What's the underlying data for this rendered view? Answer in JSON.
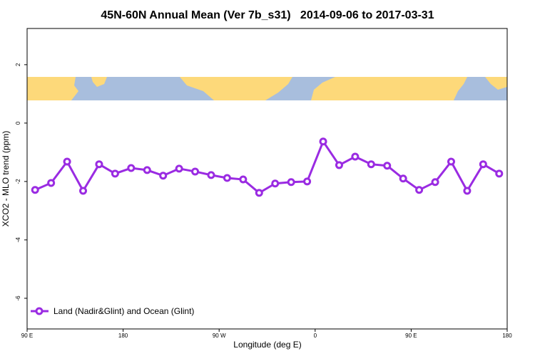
{
  "chart_data": {
    "type": "line",
    "title": "45N-60N Annual Mean (Ver 7b_s31)   2014-09-06 to 2017-03-31",
    "x_label": "Longitude (deg E)",
    "y_label": "XCO2 - MLO trend (ppm)",
    "x": [
      97.5,
      112.5,
      127.5,
      142.5,
      157.5,
      172.5,
      187.5,
      202.5,
      217.5,
      232.5,
      247.5,
      262.5,
      277.5,
      292.5,
      307.5,
      322.5,
      337.5,
      352.5,
      367.5,
      382.5,
      397.5,
      412.5,
      427.5,
      442.5,
      457.5,
      472.5,
      487.5,
      502.5,
      517.5,
      532.5
    ],
    "series": [
      {
        "name": "Land (Nadir&Glint) and Ocean (Glint)",
        "color": "#9a2be2",
        "values": [
          -2.29,
          -2.05,
          -1.32,
          -2.32,
          -1.41,
          -1.73,
          -1.54,
          -1.61,
          -1.8,
          -1.56,
          -1.66,
          -1.78,
          -1.88,
          -1.93,
          -2.39,
          -2.07,
          -2.02,
          -2.0,
          -0.63,
          -1.44,
          -1.15,
          -1.41,
          -1.46,
          -1.9,
          -2.29,
          -2.02,
          -1.32,
          -2.32,
          -1.41,
          -1.73
        ]
      }
    ],
    "xlim": [
      90,
      540
    ],
    "ylim": [
      -7.05,
      3.24
    ],
    "xticks": [
      {
        "value": 90,
        "label": "90 E"
      },
      {
        "value": 180,
        "label": "180"
      },
      {
        "value": 270,
        "label": "90 W"
      },
      {
        "value": 360,
        "label": "0"
      },
      {
        "value": 450,
        "label": "90 E"
      },
      {
        "value": 540,
        "label": "180"
      }
    ],
    "yticks": [
      -6,
      -4,
      -2,
      0,
      2
    ],
    "legend_position": "bottom-left"
  }
}
